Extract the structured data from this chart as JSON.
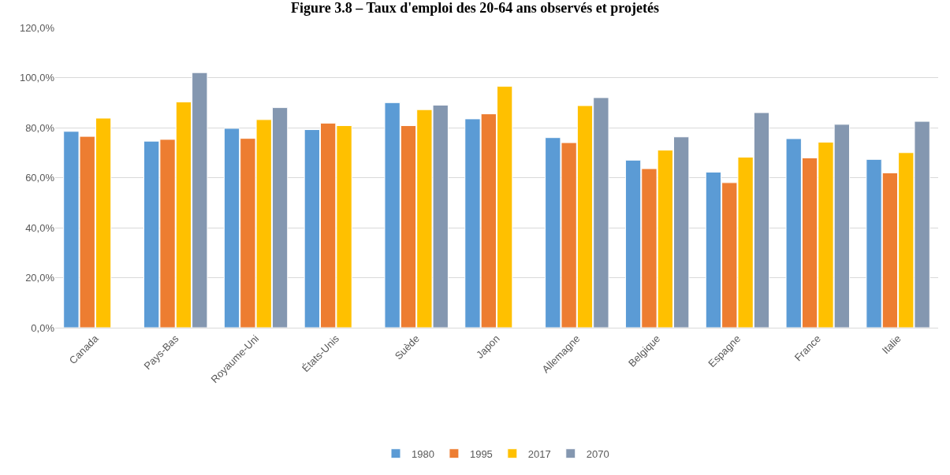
{
  "chart_data": {
    "type": "bar",
    "title": "Figure 3.8 – Taux d'emploi des 20-64 ans observés et projetés",
    "categories": [
      "Canada",
      "Pays-Bas",
      "Royaume-Uni",
      "États-Unis",
      "Suède",
      "Japon",
      "Allemagne",
      "Belgique",
      "Espagne",
      "France",
      "Italie"
    ],
    "series": [
      {
        "name": "1980",
        "color": "#5b9bd5",
        "values": [
          78.5,
          74.6,
          79.7,
          79.2,
          90.0,
          83.5,
          76.0,
          67.0,
          62.2,
          75.6,
          67.3
        ]
      },
      {
        "name": "1995",
        "color": "#ed7d31",
        "values": [
          76.5,
          75.3,
          75.7,
          81.8,
          80.8,
          85.5,
          74.0,
          63.6,
          58.0,
          67.9,
          61.9
        ]
      },
      {
        "name": "2017",
        "color": "#ffc000",
        "values": [
          83.8,
          90.3,
          83.2,
          80.8,
          87.2,
          96.5,
          88.8,
          71.0,
          68.2,
          74.2,
          70.0
        ]
      },
      {
        "name": "2070",
        "color": "#8497b0",
        "values": [
          null,
          102.0,
          88.0,
          null,
          89.0,
          null,
          92.0,
          76.3,
          86.0,
          81.3,
          82.5
        ]
      }
    ],
    "ylim": [
      0,
      120
    ],
    "yticks": [
      {
        "value": 0,
        "label": "0,0%"
      },
      {
        "value": 20,
        "label": "20,0%"
      },
      {
        "value": 40,
        "label": "40,0%"
      },
      {
        "value": 60,
        "label": "60,0%"
      },
      {
        "value": 80,
        "label": "80,0%"
      },
      {
        "value": 100,
        "label": "100,0%"
      },
      {
        "value": 120,
        "label": "120,0%"
      }
    ],
    "grid": "y",
    "legend": "bottom"
  }
}
